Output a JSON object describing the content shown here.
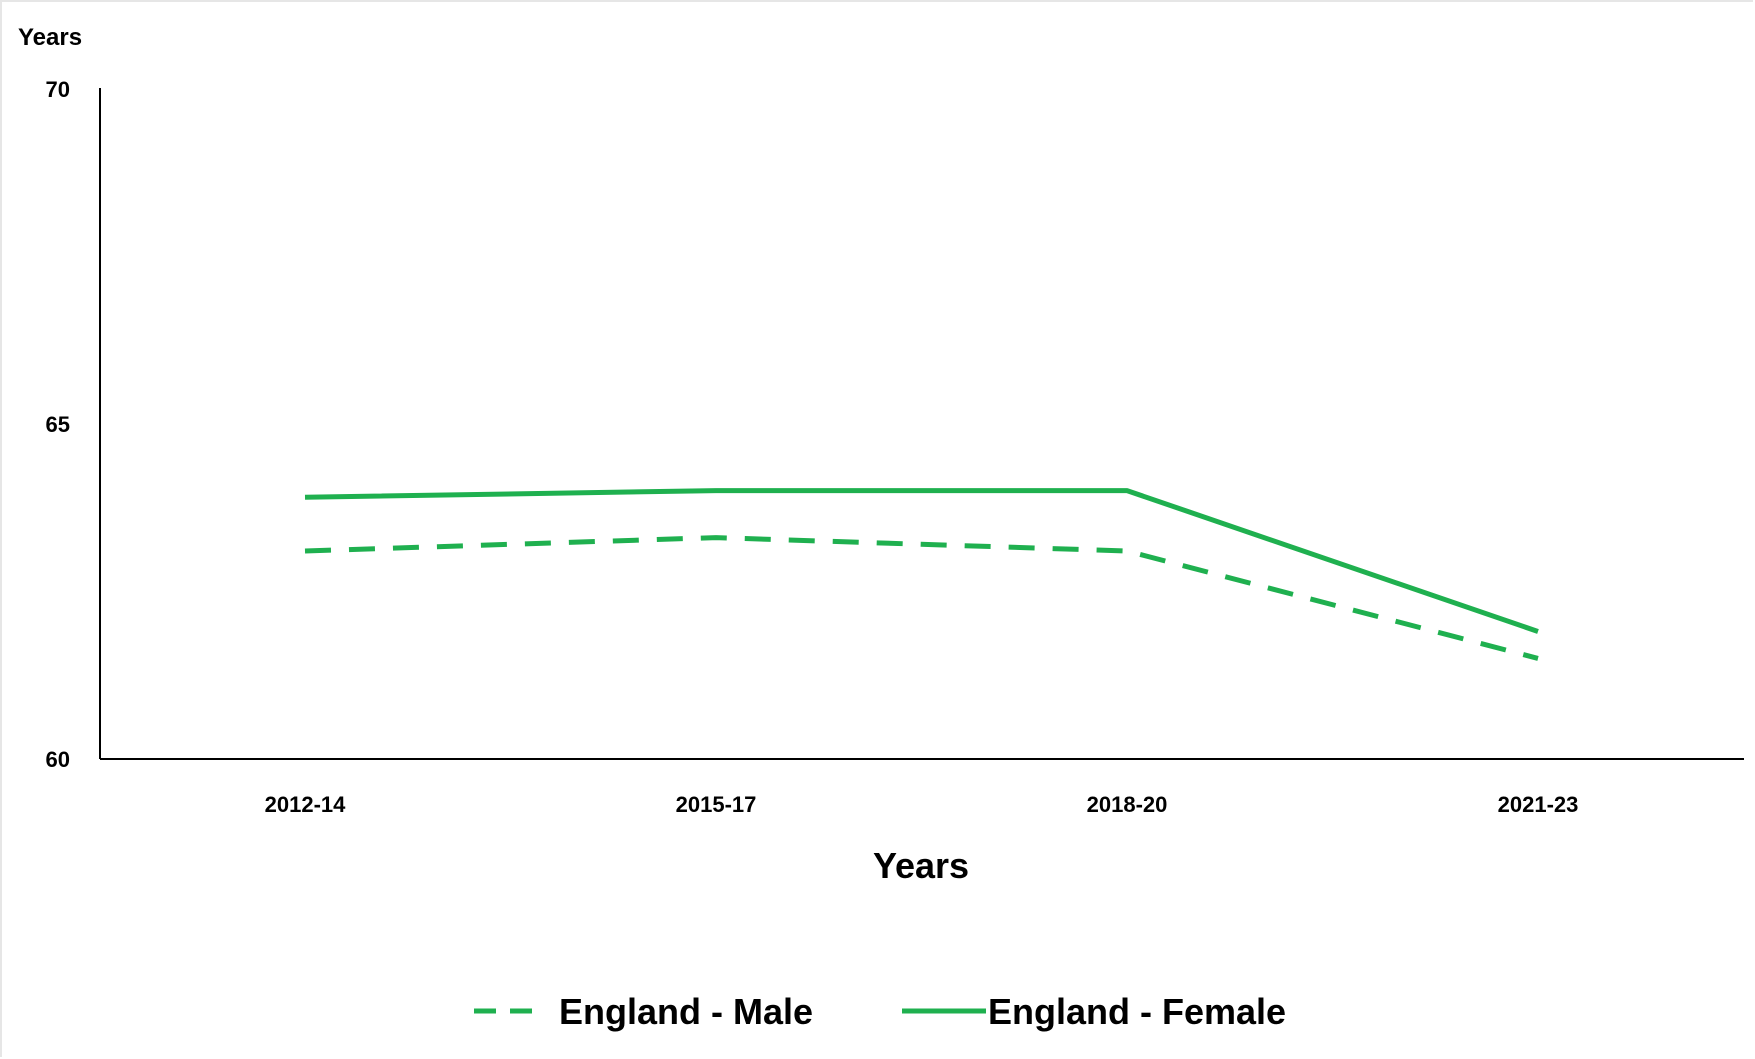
{
  "chart_data": {
    "type": "line",
    "ylabel": "Years",
    "xlabel": "Years",
    "categories": [
      "2012-14",
      "2015-17",
      "2018-20",
      "2021-23"
    ],
    "ylim": [
      60,
      70
    ],
    "yticks": [
      "60",
      "65",
      "70"
    ],
    "grid": false,
    "legend_position": "bottom",
    "series": [
      {
        "name": "England - Male",
        "values": [
          63.1,
          63.3,
          63.1,
          61.5
        ],
        "color": "#1fb04f",
        "line_style": "dashed"
      },
      {
        "name": "England - Female",
        "values": [
          63.9,
          64.0,
          64.0,
          61.9
        ],
        "color": "#1fb04f",
        "line_style": "solid"
      }
    ]
  }
}
